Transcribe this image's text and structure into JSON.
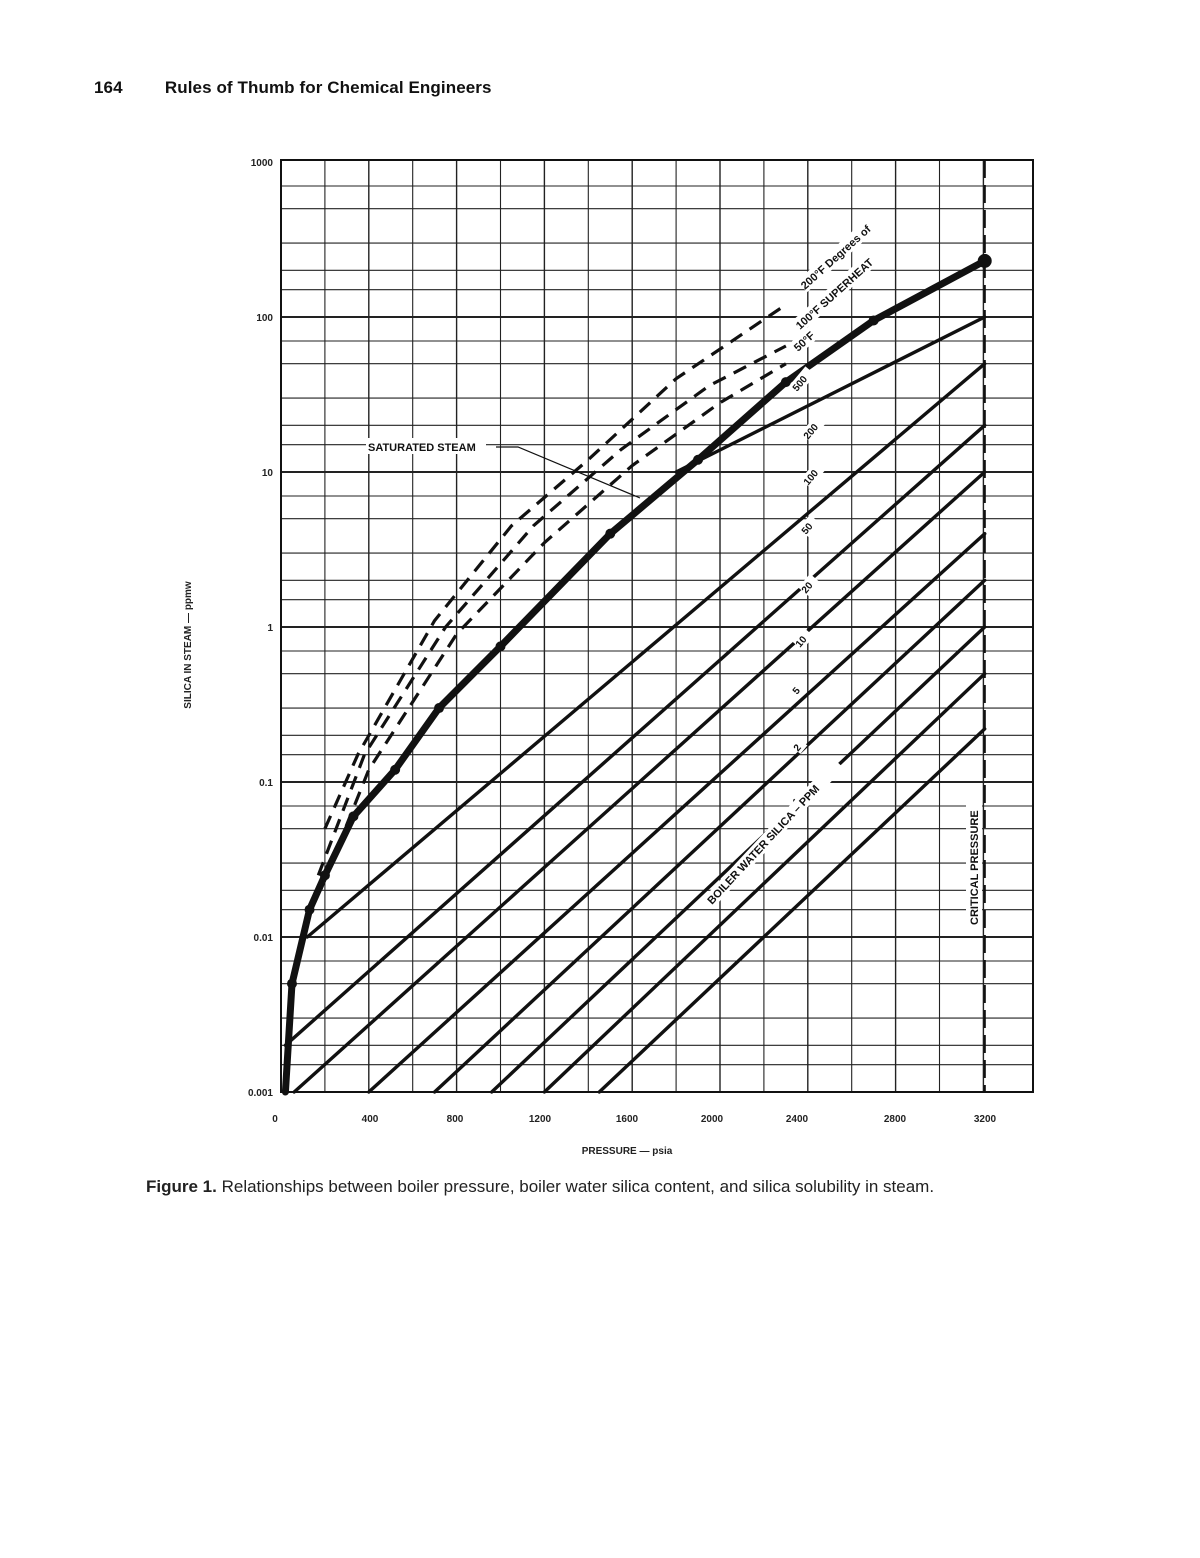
{
  "page_header": {
    "page_number": "164",
    "book_title": "Rules of Thumb for Chemical Engineers"
  },
  "caption": {
    "label": "Figure 1.",
    "text": "Relationships between boiler pressure, boiler water silica content, and silica solubility in steam."
  },
  "chart_data": {
    "type": "line",
    "title": "",
    "xlabel": "PRESSURE — psia",
    "ylabel": "SILICA IN STEAM — ppmw",
    "xscale": "linear",
    "yscale": "log",
    "xlim": [
      0,
      3300
    ],
    "ylim": [
      0.001,
      1000
    ],
    "x_ticks": [
      "0",
      "400",
      "800",
      "1200",
      "1600",
      "2000",
      "2400",
      "2800",
      "3200"
    ],
    "y_ticks": [
      "1000",
      "100",
      "10",
      "1",
      "0.1",
      "0.01",
      "0.001"
    ],
    "grid": true,
    "legend": "none (inline labels)",
    "annotations": [
      {
        "text": "SATURATED STEAM",
        "points_to": [
          1500,
          9
        ]
      },
      {
        "text": "200°F Degrees of",
        "position": "along 200°F dashed line"
      },
      {
        "text": "100°F SUPERHEAT",
        "position": "along 100°F dashed line"
      },
      {
        "text": "50°F",
        "position": "along 50°F dashed line"
      },
      {
        "text": "BOILER WATER SILICA – PPM",
        "position": "below 1 ppm line"
      },
      {
        "text": "CRITICAL PRESSURE",
        "position": "vertical dashed line at ~3206 psia"
      }
    ],
    "critical_pressure_psia": 3206,
    "series": [
      {
        "name": "Saturated steam (max silica in steam)",
        "style": "bold solid",
        "x": [
          20,
          50,
          130,
          200,
          330,
          520,
          720,
          1000,
          1500,
          1900,
          2300,
          2700,
          3206
        ],
        "y": [
          0.001,
          0.005,
          0.015,
          0.025,
          0.06,
          0.12,
          0.3,
          0.75,
          4,
          12,
          38,
          95,
          230
        ]
      },
      {
        "name": "50°F superheat",
        "style": "dashed",
        "x": [
          180,
          400,
          800,
          1200,
          1600,
          2000,
          2300
        ],
        "y": [
          0.02,
          0.12,
          0.9,
          3.5,
          11,
          28,
          50
        ]
      },
      {
        "name": "100°F superheat",
        "style": "dashed",
        "x": [
          170,
          380,
          750,
          1150,
          1550,
          1950,
          2300
        ],
        "y": [
          0.025,
          0.15,
          1.0,
          4.5,
          14,
          36,
          65
        ]
      },
      {
        "name": "200°F superheat",
        "style": "dashed",
        "x": [
          200,
          350,
          700,
          1050,
          1400,
          1800,
          2300
        ],
        "y": [
          0.05,
          0.15,
          1.1,
          4.5,
          12,
          40,
          120
        ]
      },
      {
        "name": "Boiler water silica 500 ppm",
        "style": "solid",
        "x": [
          1800,
          3206
        ],
        "y": [
          10,
          100
        ]
      },
      {
        "name": "Boiler water silica 200 ppm",
        "style": "solid",
        "x": [
          120,
          3206
        ],
        "y": [
          0.01,
          50
        ]
      },
      {
        "name": "Boiler water silica 100 ppm",
        "style": "solid",
        "x": [
          20,
          3206
        ],
        "y": [
          0.002,
          20
        ]
      },
      {
        "name": "Boiler water silica 50 ppm",
        "style": "solid",
        "x": [
          60,
          3206
        ],
        "y": [
          0.001,
          10
        ]
      },
      {
        "name": "Boiler water silica 20 ppm",
        "style": "solid",
        "x": [
          400,
          3206
        ],
        "y": [
          0.001,
          4
        ]
      },
      {
        "name": "Boiler water silica 10 ppm",
        "style": "solid",
        "x": [
          700,
          3206
        ],
        "y": [
          0.001,
          2
        ]
      },
      {
        "name": "Boiler water silica 5 ppm",
        "style": "solid",
        "x": [
          960,
          3206
        ],
        "y": [
          0.001,
          1
        ]
      },
      {
        "name": "Boiler water silica 2 ppm",
        "style": "solid",
        "x": [
          1200,
          3206
        ],
        "y": [
          0.001,
          0.5
        ]
      },
      {
        "name": "Boiler water silica 1 ppm",
        "style": "solid",
        "x": [
          1450,
          3206
        ],
        "y": [
          0.001,
          0.22
        ]
      }
    ],
    "boiler_water_silica_labels_ppm": [
      "500",
      "200",
      "100",
      "50",
      "20",
      "10",
      "5",
      "2",
      "1"
    ]
  }
}
